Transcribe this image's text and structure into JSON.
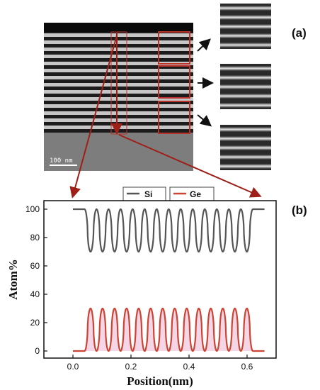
{
  "panel_labels": {
    "a": "(a)",
    "b": "(b)"
  },
  "tem": {
    "scale_bar_label": "100 nm"
  },
  "colors": {
    "si": "#555555",
    "ge": "#cc4433",
    "ge_fill": "#f4d6e6",
    "highlight_box": "#b8322a",
    "arrow": "#9e1f17"
  },
  "chart_data": {
    "type": "line",
    "xlabel": "Position(nm)",
    "ylabel": "Atom%",
    "xlim": [
      -0.1,
      0.7
    ],
    "ylim": [
      -5,
      106
    ],
    "xticks": [
      0.0,
      0.2,
      0.4,
      0.6
    ],
    "xtick_labels": [
      "0.0",
      "0.2",
      "0.4",
      "0.6"
    ],
    "yticks": [
      0,
      20,
      40,
      60,
      80,
      100
    ],
    "ytick_labels": [
      "0",
      "20",
      "40",
      "60",
      "80",
      "100"
    ],
    "legend_position": "top-center",
    "series": [
      {
        "name": "Si",
        "color": "#555555",
        "baseline": 100,
        "amplitude_min": 70,
        "x_start": 0.0,
        "x_end": 0.66,
        "oscillation_start": 0.04,
        "oscillation_end": 0.62,
        "periods": 14
      },
      {
        "name": "Ge",
        "color": "#cc4433",
        "baseline": 0,
        "amplitude_max": 30,
        "x_start": 0.0,
        "x_end": 0.66,
        "oscillation_start": 0.04,
        "oscillation_end": 0.62,
        "periods": 14
      }
    ]
  }
}
